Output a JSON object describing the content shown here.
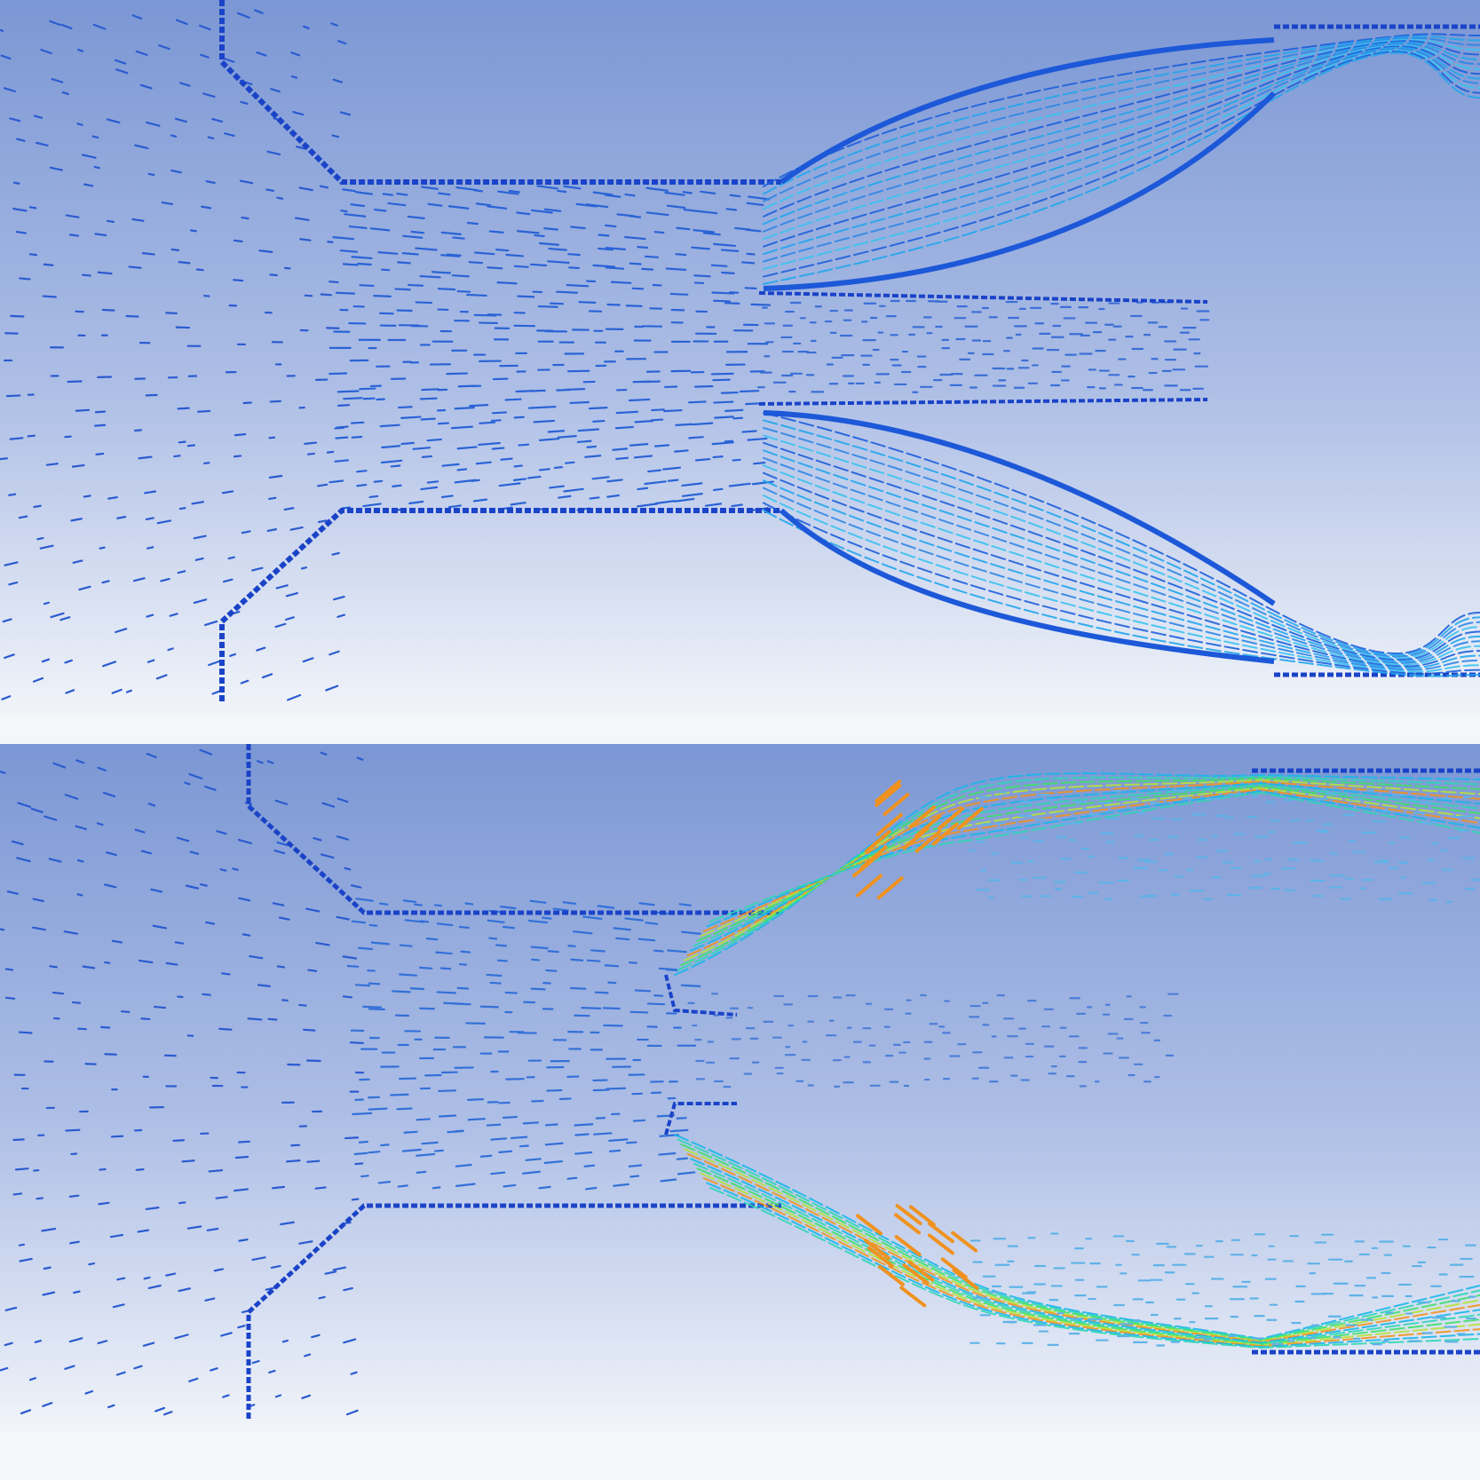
{
  "panels": [
    {
      "id": "top",
      "flow_state": "low-velocity",
      "colormap": "blue-cyan"
    },
    {
      "id": "bottom",
      "flow_state": "high-velocity-jets",
      "colormap": "blue-cyan-green-orange"
    }
  ],
  "colors": {
    "background_top": "#7b97d4",
    "background_bottom": "#f1f4f9",
    "vector_slow": "#1f4fcf",
    "vector_medium": "#19b6ea",
    "vector_fast": "#3fe06a",
    "vector_peak": "#f09220",
    "wall": "#1a43c8"
  }
}
